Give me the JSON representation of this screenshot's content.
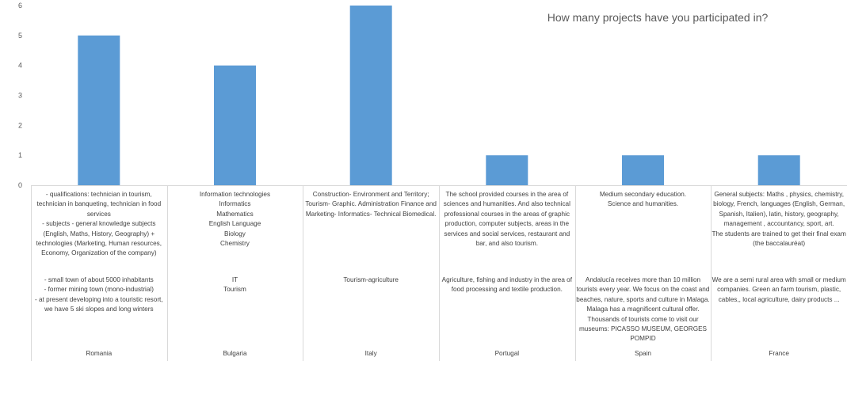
{
  "chart_data": {
    "type": "bar",
    "title": "How many projects have you participated in?",
    "ylim": [
      0,
      6
    ],
    "yticks": [
      0,
      1,
      2,
      3,
      4,
      5,
      6
    ],
    "grid": false,
    "bar_color": "#5b9bd5",
    "values": [
      5,
      4,
      6,
      1,
      1,
      1
    ],
    "categories": [
      {
        "level1": "- qualifications: technician in tourism, technician in banqueting, technician in food services\n- subjects - general knowledge subjects (English, Maths, History, Geography) + technologies (Marketing, Human resources, Economy, Organization of the company)",
        "level2": "- small town of about 5000 inhabitants\n- former mining town (mono-industrial)\n- at present developing into a touristic resort, we have 5 ski slopes and long winters",
        "level3": "Romania"
      },
      {
        "level1": "Information technologies\nInformatics\nMathematics\nEnglish Language\nBiology\nChemistry",
        "level2": "IT\nTourism",
        "level3": "Bulgaria"
      },
      {
        "level1": "Construction- Environment and Territory; Tourism- Graphic. Administration Finance and Marketing- Informatics- Technical Biomedical.",
        "level2": "Tourism-agriculture",
        "level3": "Italy"
      },
      {
        "level1": "The school provided courses in the area of sciences and humanities. And also technical professional courses in the areas of graphic production, computer subjects, areas in the services and social services, restaurant and bar, and also tourism.",
        "level2": "Agriculture, fishing and industry in the area of food processing and textile production.",
        "level3": "Portugal"
      },
      {
        "level1": "Medium secondary education.\nScience and humanities.",
        "level2": "Andalucía receives more than 10 million tourists every year. We focus on  the coast and beaches, nature, sports and culture in Malaga. Malaga has a magnificent cultural offer. Thousands of tourists come to visit our museums: PICASSO MUSEUM, GEORGES POMPID",
        "level3": "Spain"
      },
      {
        "level1": "General subjects: Maths , physics, chemistry, biology, French, languages (English, German, Spanish, Italien), latin, history, geography, management , accountancy, sport, art.\nThe students are trained to get their final exam (the baccalauréat)",
        "level2": "We are a semi rural area with small or medium companies. Green an farm tourism, plastic, cables,, local agriculture, dairy products ...",
        "level3": "France"
      }
    ]
  }
}
